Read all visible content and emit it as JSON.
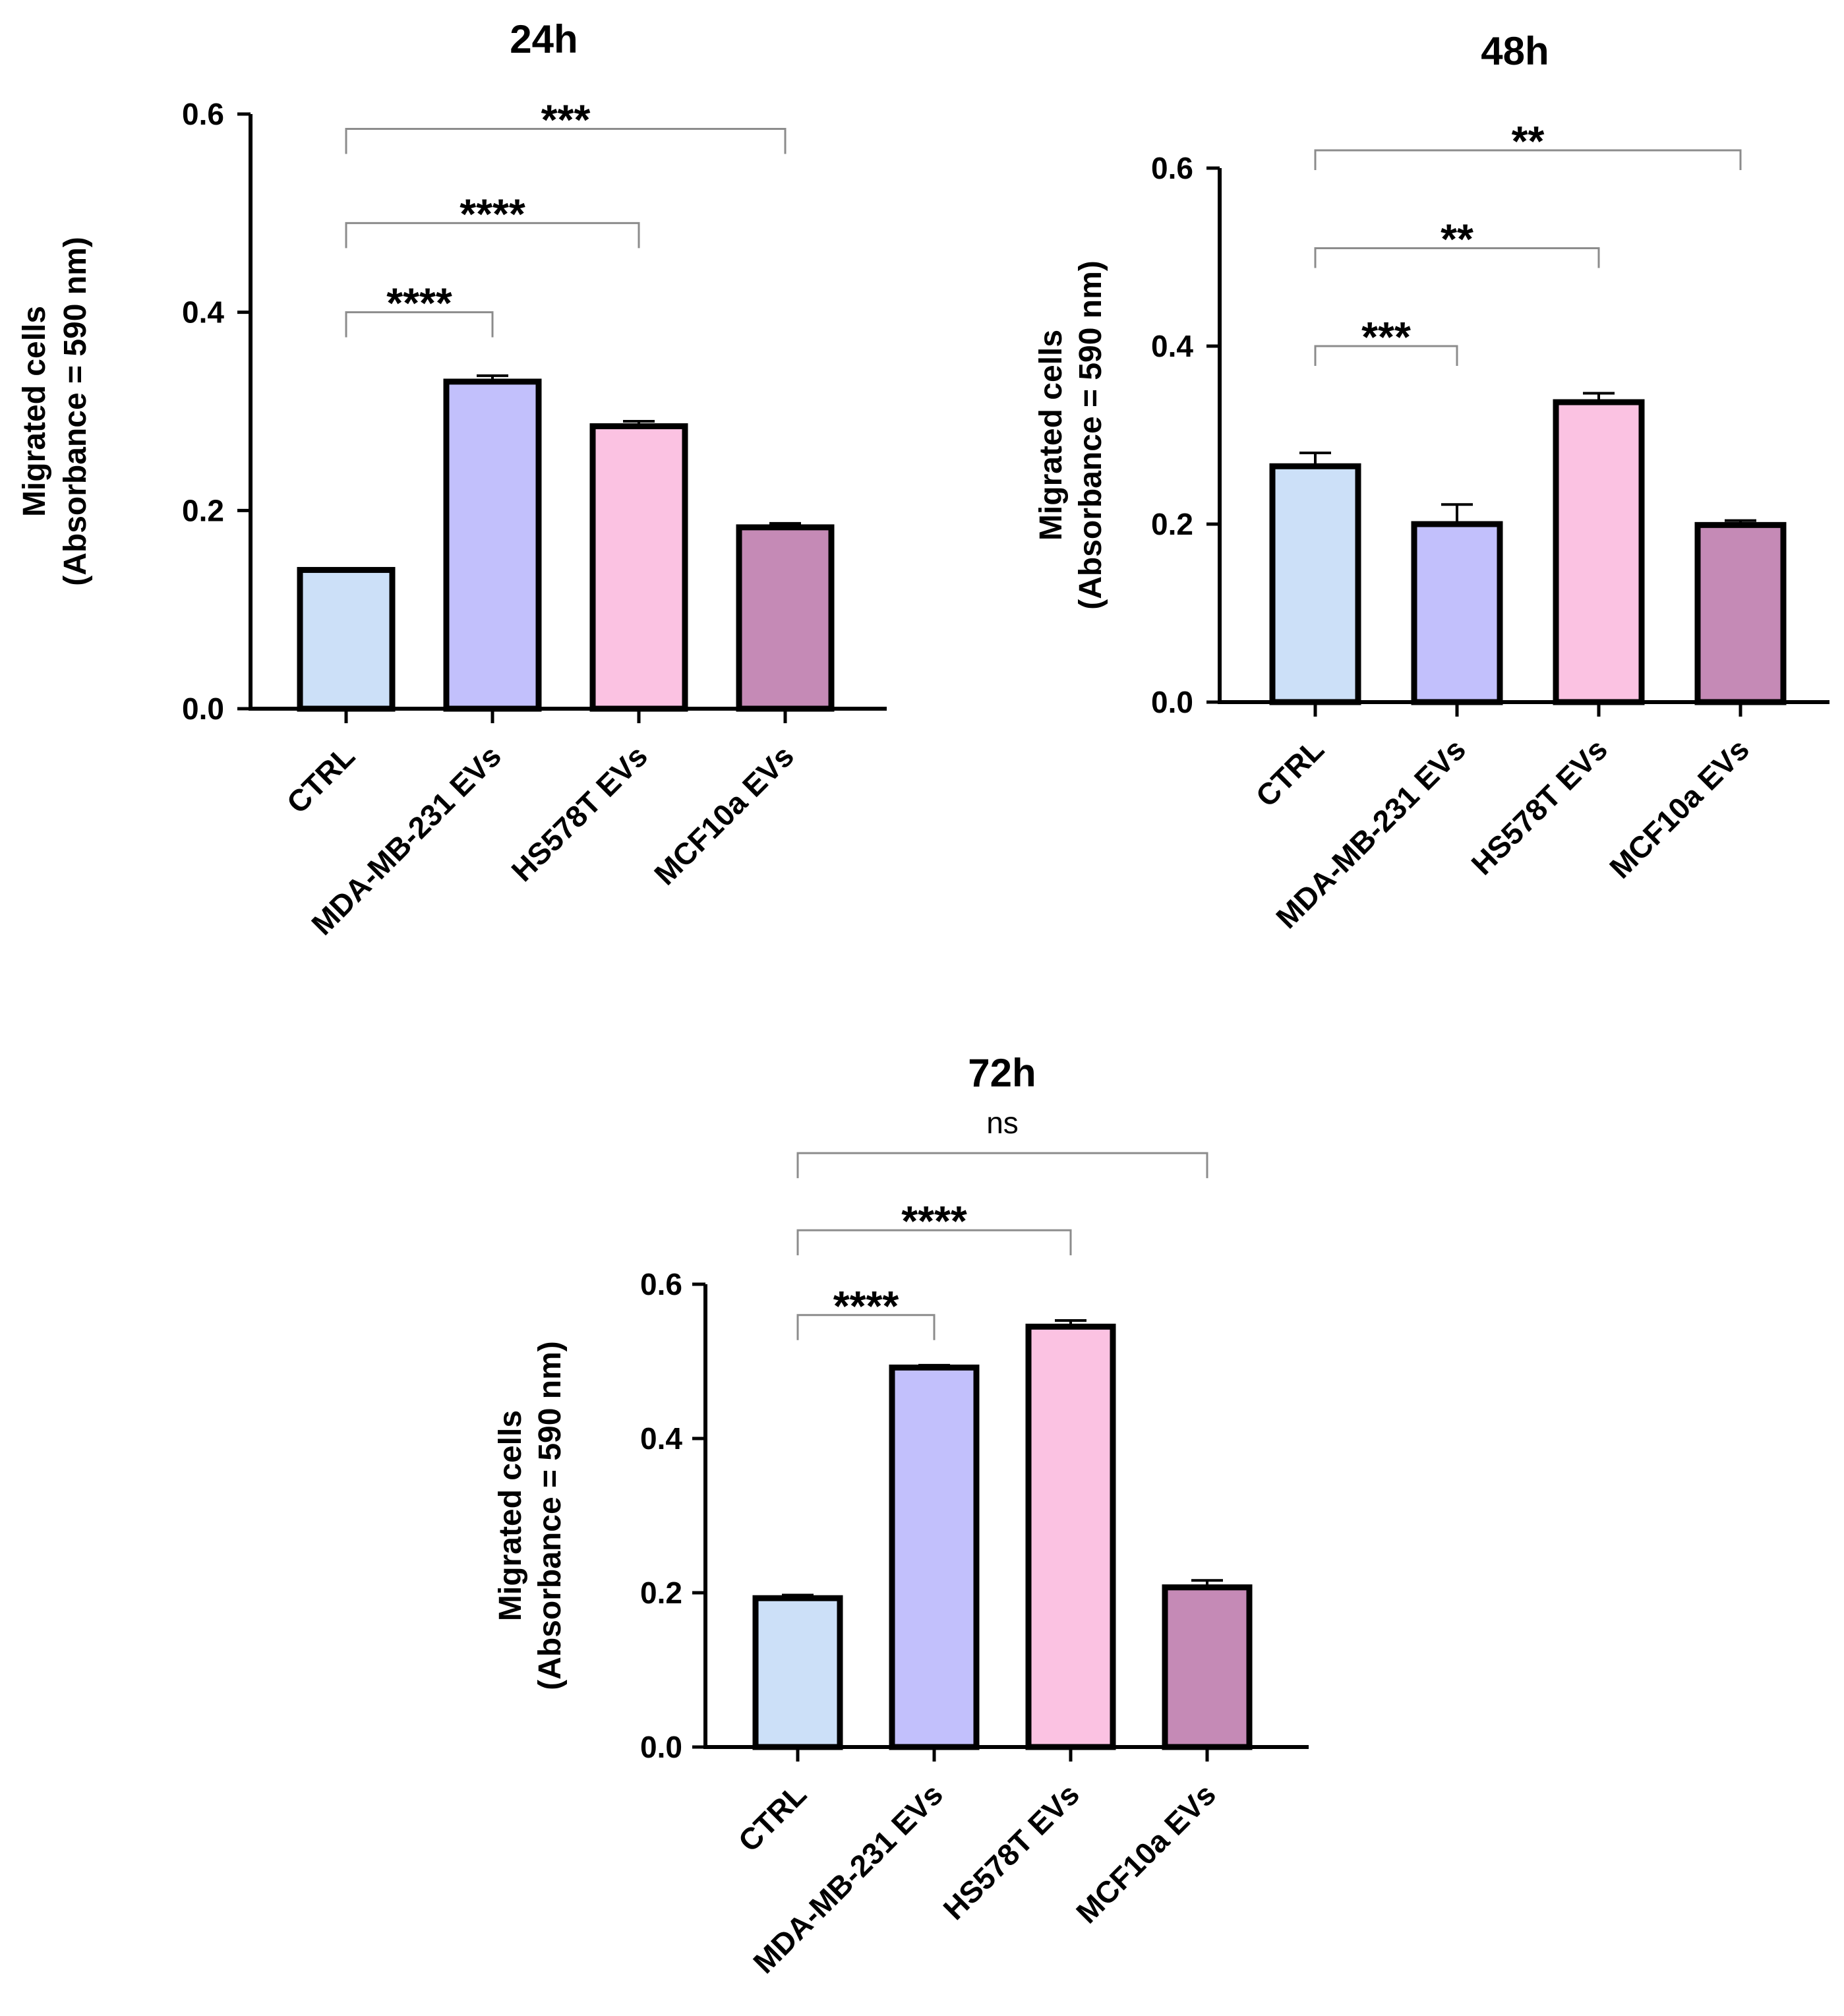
{
  "colors": {
    "bar_fills": [
      "#cce0f8",
      "#c2c0fc",
      "#fbc2e2",
      "#c58ab6"
    ],
    "bracket": "#8c8c8c",
    "axis": "#000000"
  },
  "chart_data": [
    {
      "type": "bar",
      "title": "24h",
      "categories": [
        "CTRL",
        "MDA-MB-231 EVs",
        "HS578T EVs",
        "MCF10a EVs"
      ],
      "values": [
        0.14,
        0.33,
        0.285,
        0.183
      ],
      "errors": [
        0.0,
        0.006,
        0.005,
        0.004
      ],
      "ylabel_line1": "Migrated cells",
      "ylabel_line2": "(Absorbance = 590 nm)",
      "xlabel": "",
      "ylim": [
        0,
        0.6
      ],
      "yticks": [
        "0.0",
        "0.2",
        "0.4",
        "0.6"
      ],
      "significance": [
        {
          "from": 0,
          "to": 1,
          "label": "****",
          "y": 0.4
        },
        {
          "from": 0,
          "to": 2,
          "label": "****",
          "y": 0.49
        },
        {
          "from": 0,
          "to": 3,
          "label": "***",
          "y": 0.585
        }
      ]
    },
    {
      "type": "bar",
      "title": "48h",
      "categories": [
        "CTRL",
        "MDA-MB-231 EVs",
        "HS578T EVs",
        "MCF10a EVs"
      ],
      "values": [
        0.265,
        0.2,
        0.337,
        0.199
      ],
      "errors": [
        0.015,
        0.022,
        0.01,
        0.005
      ],
      "ylabel_line1": "Migrated cells",
      "ylabel_line2": "(Absorbance = 590 nm)",
      "xlabel": "",
      "ylim": [
        0,
        0.6
      ],
      "yticks": [
        "0.0",
        "0.2",
        "0.4",
        "0.6"
      ],
      "significance": [
        {
          "from": 0,
          "to": 1,
          "label": "***",
          "y": 0.4
        },
        {
          "from": 0,
          "to": 2,
          "label": "**",
          "y": 0.51
        },
        {
          "from": 0,
          "to": 3,
          "label": "**",
          "y": 0.62
        }
      ]
    },
    {
      "type": "bar",
      "title": "72h",
      "categories": [
        "CTRL",
        "MDA-MB-231 EVs",
        "HS578T EVs",
        "MCF10a EVs"
      ],
      "values": [
        0.193,
        0.492,
        0.545,
        0.207
      ],
      "errors": [
        0.004,
        0.003,
        0.008,
        0.009
      ],
      "ylabel_line1": "Migrated cells",
      "ylabel_line2": "(Absorbance = 590 nm)",
      "xlabel": "",
      "ylim": [
        0,
        0.6
      ],
      "yticks": [
        "0.0",
        "0.2",
        "0.4",
        "0.6"
      ],
      "significance": [
        {
          "from": 0,
          "to": 1,
          "label": "****",
          "y": 0.56
        },
        {
          "from": 0,
          "to": 2,
          "label": "****",
          "y": 0.67
        },
        {
          "from": 0,
          "to": 3,
          "label": "ns",
          "y": 0.77
        }
      ]
    }
  ]
}
